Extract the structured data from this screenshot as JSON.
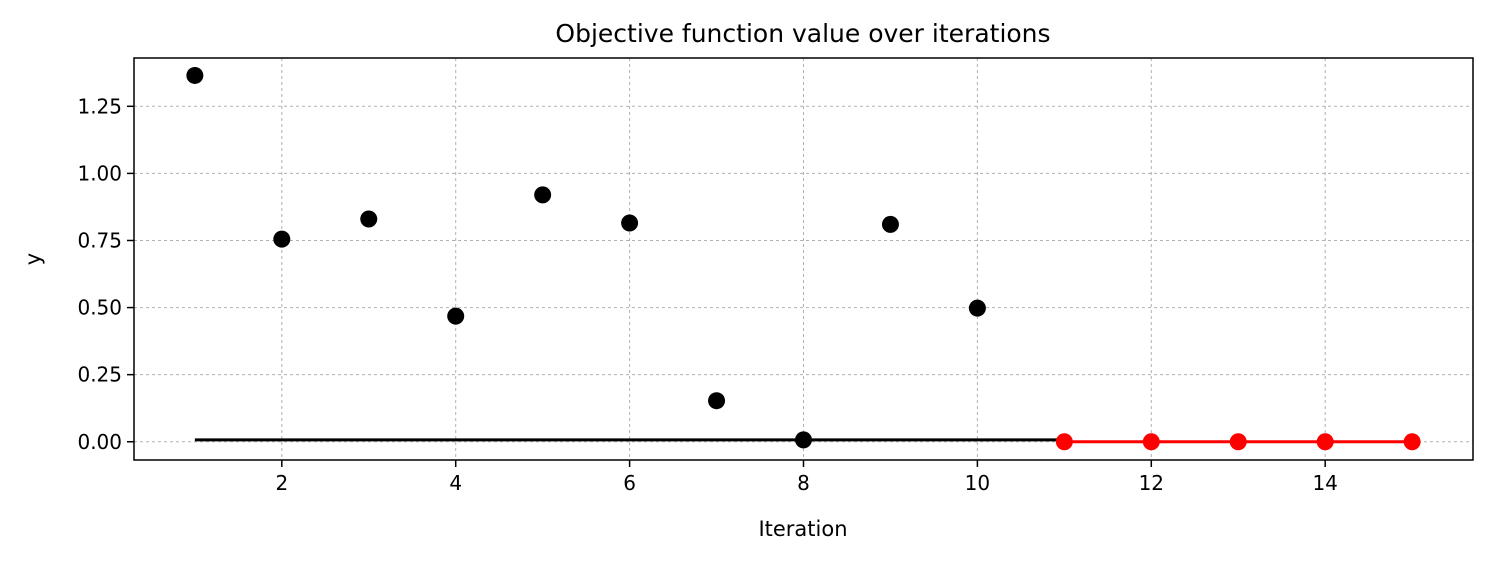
{
  "chart_data": {
    "type": "scatter",
    "title": "Objective function value over iterations",
    "xlabel": "Iteration",
    "ylabel": "y",
    "xlim": [
      0.3,
      15.7
    ],
    "ylim": [
      -0.068,
      1.43
    ],
    "xticks": [
      2,
      4,
      6,
      8,
      10,
      12,
      14
    ],
    "yticks": [
      0.0,
      0.25,
      0.5,
      0.75,
      1.0,
      1.25
    ],
    "ytick_labels": [
      "0.00",
      "0.25",
      "0.50",
      "0.75",
      "1.00",
      "1.25"
    ],
    "grid": true,
    "series": [
      {
        "role": "initial-points",
        "color": "#000000",
        "x": [
          1,
          2,
          3,
          4,
          5,
          6,
          7,
          8,
          9,
          10
        ],
        "y": [
          1.365,
          0.755,
          0.83,
          0.468,
          0.92,
          0.815,
          0.153,
          0.007,
          0.81,
          0.498
        ]
      },
      {
        "role": "optimization-points",
        "color": "#ff0000",
        "x": [
          11,
          12,
          13,
          14,
          15
        ],
        "y": [
          0.0,
          0.0,
          0.0,
          0.0,
          0.0
        ]
      }
    ],
    "lines": [
      {
        "role": "best-so-far-initial",
        "color": "#000000",
        "x": [
          1,
          11
        ],
        "y": [
          0.007,
          0.007
        ]
      },
      {
        "role": "best-so-far-optimization",
        "color": "#ff0000",
        "x": [
          11,
          15
        ],
        "y": [
          0.0,
          0.0
        ]
      }
    ]
  }
}
